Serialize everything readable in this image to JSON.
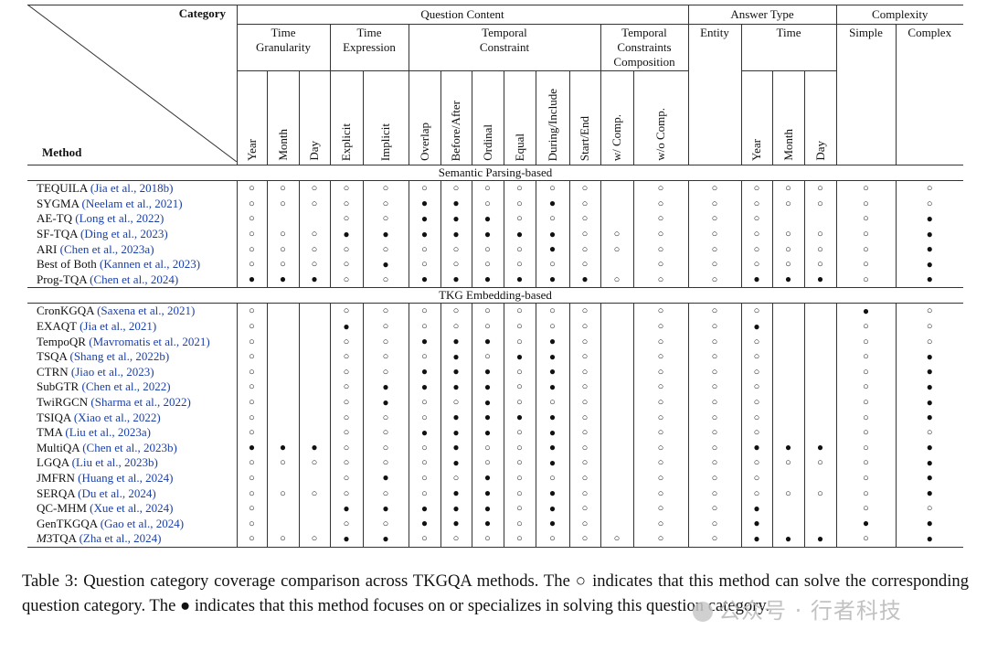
{
  "header": {
    "category": "Category",
    "method": "Method",
    "groups": [
      "Question Content",
      "Answer Type",
      "Complexity"
    ],
    "subgroups": [
      "Time\nGranularity",
      "Time\nExpression",
      "Temporal\nConstraint",
      "Temporal\nConstraints\nComposition",
      "Entity",
      "Time",
      "Simple",
      "Complex"
    ],
    "columns": [
      "Year",
      "Month",
      "Day",
      "Explicit",
      "Implicit",
      "Overlap",
      "Before/After",
      "Ordinal",
      "Equal",
      "During/Include",
      "Start/End",
      "w/ Comp.",
      "w/o Comp.",
      "Year",
      "Month",
      "Day"
    ]
  },
  "sections": [
    {
      "title": "Semantic Parsing-based",
      "rows": [
        {
          "name": "TEQUILA",
          "cite": "(Jia et al., 2018b)",
          "cells": [
            "o",
            "o",
            "o",
            "o",
            "o",
            "o",
            "o",
            "o",
            "o",
            "o",
            "o",
            "",
            "o",
            "o",
            "o",
            "o",
            "o",
            "o",
            "o"
          ]
        },
        {
          "name": "SYGMA",
          "cite": "(Neelam et al., 2021)",
          "cells": [
            "o",
            "o",
            "o",
            "o",
            "o",
            "f",
            "f",
            "o",
            "o",
            "f",
            "o",
            "",
            "o",
            "o",
            "o",
            "o",
            "o",
            "o",
            "o"
          ]
        },
        {
          "name": "AE-TQ",
          "cite": "(Long et al., 2022)",
          "cells": [
            "o",
            "",
            "",
            "o",
            "o",
            "f",
            "f",
            "f",
            "o",
            "o",
            "o",
            "",
            "o",
            "o",
            "o",
            "",
            "",
            "o",
            "f"
          ]
        },
        {
          "name": "SF-TQA",
          "cite": "(Ding et al., 2023)",
          "cells": [
            "o",
            "o",
            "o",
            "f",
            "f",
            "f",
            "f",
            "f",
            "f",
            "f",
            "o",
            "o",
            "o",
            "o",
            "o",
            "o",
            "o",
            "o",
            "f"
          ]
        },
        {
          "name": "ARI",
          "cite": "(Chen et al., 2023a)",
          "cells": [
            "o",
            "o",
            "o",
            "o",
            "o",
            "o",
            "o",
            "o",
            "o",
            "f",
            "o",
            "o",
            "o",
            "o",
            "o",
            "o",
            "o",
            "o",
            "f"
          ]
        },
        {
          "name": "Best of Both",
          "cite": "(Kannen et al., 2023)",
          "cells": [
            "o",
            "o",
            "o",
            "o",
            "f",
            "o",
            "o",
            "o",
            "o",
            "o",
            "o",
            "",
            "o",
            "o",
            "o",
            "o",
            "o",
            "o",
            "f"
          ]
        },
        {
          "name": "Prog-TQA",
          "cite": "(Chen et al., 2024)",
          "cells": [
            "f",
            "f",
            "f",
            "o",
            "o",
            "f",
            "f",
            "f",
            "f",
            "f",
            "f",
            "o",
            "o",
            "o",
            "f",
            "f",
            "f",
            "o",
            "f"
          ]
        }
      ]
    },
    {
      "title": "TKG Embedding-based",
      "rows": [
        {
          "name": "CronKGQA",
          "cite": "(Saxena et al., 2021)",
          "cells": [
            "o",
            "",
            "",
            "o",
            "o",
            "o",
            "o",
            "o",
            "o",
            "o",
            "o",
            "",
            "o",
            "o",
            "o",
            "",
            "",
            "f",
            "o"
          ]
        },
        {
          "name": "EXAQT",
          "cite": "(Jia et al., 2021)",
          "cells": [
            "o",
            "",
            "",
            "f",
            "o",
            "o",
            "o",
            "o",
            "o",
            "o",
            "o",
            "",
            "o",
            "o",
            "f",
            "",
            "",
            "o",
            "o"
          ]
        },
        {
          "name": "TempoQR",
          "cite": "(Mavromatis et al., 2021)",
          "cells": [
            "o",
            "",
            "",
            "o",
            "o",
            "f",
            "f",
            "f",
            "o",
            "f",
            "o",
            "",
            "o",
            "o",
            "o",
            "",
            "",
            "o",
            "o"
          ]
        },
        {
          "name": "TSQA",
          "cite": "(Shang et al., 2022b)",
          "cells": [
            "o",
            "",
            "",
            "o",
            "o",
            "o",
            "f",
            "o",
            "f",
            "f",
            "o",
            "",
            "o",
            "o",
            "o",
            "",
            "",
            "o",
            "f"
          ]
        },
        {
          "name": "CTRN",
          "cite": "(Jiao et al., 2023)",
          "cells": [
            "o",
            "",
            "",
            "o",
            "o",
            "f",
            "f",
            "f",
            "o",
            "f",
            "o",
            "",
            "o",
            "o",
            "o",
            "",
            "",
            "o",
            "f"
          ]
        },
        {
          "name": "SubGTR",
          "cite": "(Chen et al., 2022)",
          "cells": [
            "o",
            "",
            "",
            "o",
            "f",
            "f",
            "f",
            "f",
            "o",
            "f",
            "o",
            "",
            "o",
            "o",
            "o",
            "",
            "",
            "o",
            "f"
          ]
        },
        {
          "name": "TwiRGCN",
          "cite": "(Sharma et al., 2022)",
          "cells": [
            "o",
            "",
            "",
            "o",
            "f",
            "o",
            "o",
            "f",
            "o",
            "o",
            "o",
            "",
            "o",
            "o",
            "o",
            "",
            "",
            "o",
            "f"
          ]
        },
        {
          "name": "TSIQA",
          "cite": "(Xiao et al., 2022)",
          "cells": [
            "o",
            "",
            "",
            "o",
            "o",
            "o",
            "f",
            "f",
            "f",
            "f",
            "o",
            "",
            "o",
            "o",
            "o",
            "",
            "",
            "o",
            "f"
          ]
        },
        {
          "name": "TMA",
          "cite": "(Liu et al., 2023a)",
          "cells": [
            "o",
            "",
            "",
            "o",
            "o",
            "f",
            "f",
            "f",
            "o",
            "f",
            "o",
            "",
            "o",
            "o",
            "o",
            "",
            "",
            "o",
            "o"
          ]
        },
        {
          "name": "MultiQA",
          "cite": "(Chen et al., 2023b)",
          "cells": [
            "f",
            "f",
            "f",
            "o",
            "o",
            "o",
            "f",
            "o",
            "o",
            "f",
            "o",
            "",
            "o",
            "o",
            "f",
            "f",
            "f",
            "o",
            "f"
          ]
        },
        {
          "name": "LGQA",
          "cite": "(Liu et al., 2023b)",
          "cells": [
            "o",
            "o",
            "o",
            "o",
            "o",
            "o",
            "f",
            "o",
            "o",
            "f",
            "o",
            "",
            "o",
            "o",
            "o",
            "o",
            "o",
            "o",
            "f"
          ]
        },
        {
          "name": "JMFRN",
          "cite": "(Huang et al., 2024)",
          "cells": [
            "o",
            "",
            "",
            "o",
            "f",
            "o",
            "o",
            "f",
            "o",
            "o",
            "o",
            "",
            "o",
            "o",
            "o",
            "",
            "",
            "o",
            "f"
          ]
        },
        {
          "name": "SERQA",
          "cite": "(Du et al., 2024)",
          "cells": [
            "o",
            "o",
            "o",
            "o",
            "o",
            "o",
            "f",
            "f",
            "o",
            "f",
            "o",
            "",
            "o",
            "o",
            "o",
            "o",
            "o",
            "o",
            "f"
          ]
        },
        {
          "name": "QC-MHM",
          "cite": "(Xue et al., 2024)",
          "cells": [
            "o",
            "",
            "",
            "f",
            "f",
            "f",
            "f",
            "f",
            "o",
            "f",
            "o",
            "",
            "o",
            "o",
            "f",
            "",
            "",
            "o",
            "o"
          ]
        },
        {
          "name": "GenTKGQA",
          "cite": "(Gao et al., 2024)",
          "cells": [
            "o",
            "",
            "",
            "o",
            "o",
            "f",
            "f",
            "f",
            "o",
            "f",
            "o",
            "",
            "o",
            "o",
            "f",
            "",
            "",
            "f",
            "f"
          ]
        },
        {
          "name": "M3TQA",
          "cite": "(Zha et al., 2024)",
          "cells": [
            "o",
            "o",
            "o",
            "f",
            "f",
            "o",
            "o",
            "o",
            "o",
            "o",
            "o",
            "o",
            "o",
            "o",
            "f",
            "f",
            "f",
            "o",
            "f"
          ]
        }
      ]
    }
  ],
  "symbols": {
    "o": "○",
    "f": "●"
  },
  "caption": "Table 3: Question category coverage comparison across TKGQA methods. The ○ indicates that this method can solve the corresponding question category. The ● indicates that this method focuses on or specializes in solving this question category.",
  "watermark": "公众号 · 行者科技"
}
